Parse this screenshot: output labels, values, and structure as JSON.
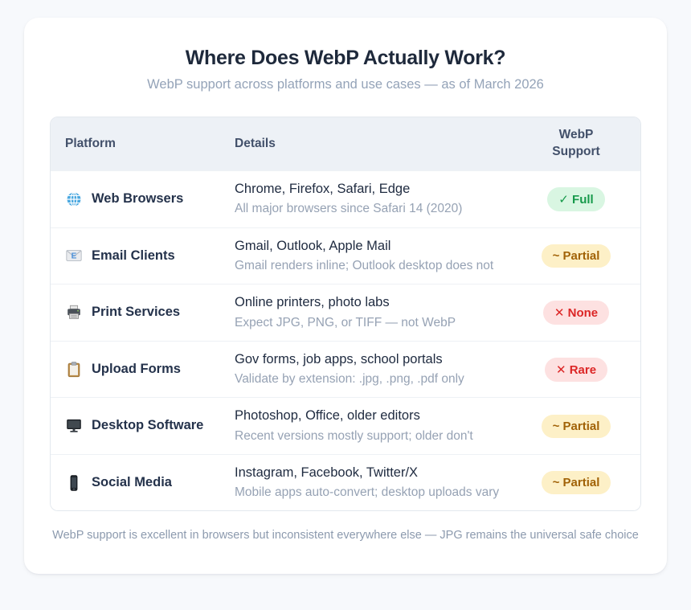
{
  "chart_data": {
    "type": "table",
    "title": "Where Does WebP Actually Work?",
    "subtitle": "WebP support across platforms and use cases — as of March 2026",
    "columns": [
      "Platform",
      "Details",
      "WebP Support"
    ],
    "rows": [
      {
        "icon": "globe-icon",
        "platform": "Web Browsers",
        "details": "Chrome, Firefox, Safari, Edge",
        "note": "All major browsers since Safari 14 (2020)",
        "support": {
          "text": "✓ Full",
          "type": "full"
        }
      },
      {
        "icon": "email-icon",
        "platform": "Email Clients",
        "details": "Gmail, Outlook, Apple Mail",
        "note": "Gmail renders inline; Outlook desktop does not",
        "support": {
          "text": "~ Partial",
          "type": "partial"
        }
      },
      {
        "icon": "printer-icon",
        "platform": "Print Services",
        "details": "Online printers, photo labs",
        "note": "Expect JPG, PNG, or TIFF — not WebP",
        "support": {
          "text": "✕ None",
          "type": "none"
        }
      },
      {
        "icon": "clipboard-icon",
        "platform": "Upload Forms",
        "details": "Gov forms, job apps, school portals",
        "note": "Validate by extension: .jpg, .png, .pdf only",
        "support": {
          "text": "✕ Rare",
          "type": "rare"
        }
      },
      {
        "icon": "desktop-icon",
        "platform": "Desktop Software",
        "details": "Photoshop, Office, older editors",
        "note": "Recent versions mostly support; older don't",
        "support": {
          "text": "~ Partial",
          "type": "partial"
        }
      },
      {
        "icon": "phone-icon",
        "platform": "Social Media",
        "details": "Instagram, Facebook, Twitter/X",
        "note": "Mobile apps auto-convert; desktop uploads vary",
        "support": {
          "text": "~ Partial",
          "type": "partial"
        }
      }
    ],
    "footnote": "WebP support is excellent in browsers but inconsistent everywhere else — JPG remains the universal safe choice"
  },
  "colors": {
    "page_background": "#f7f9fc",
    "card_background": "#ffffff",
    "table_header_background": "#edf1f6",
    "title_text": "#1e293b",
    "subtitle_text": "#94a3b8",
    "badge_full_bg": "#d9f6e2",
    "badge_full_text": "#179a4b",
    "badge_partial_bg": "#fdf0c7",
    "badge_partial_text": "#a16207",
    "badge_none_bg": "#fde1e1",
    "badge_none_text": "#dc2626"
  }
}
